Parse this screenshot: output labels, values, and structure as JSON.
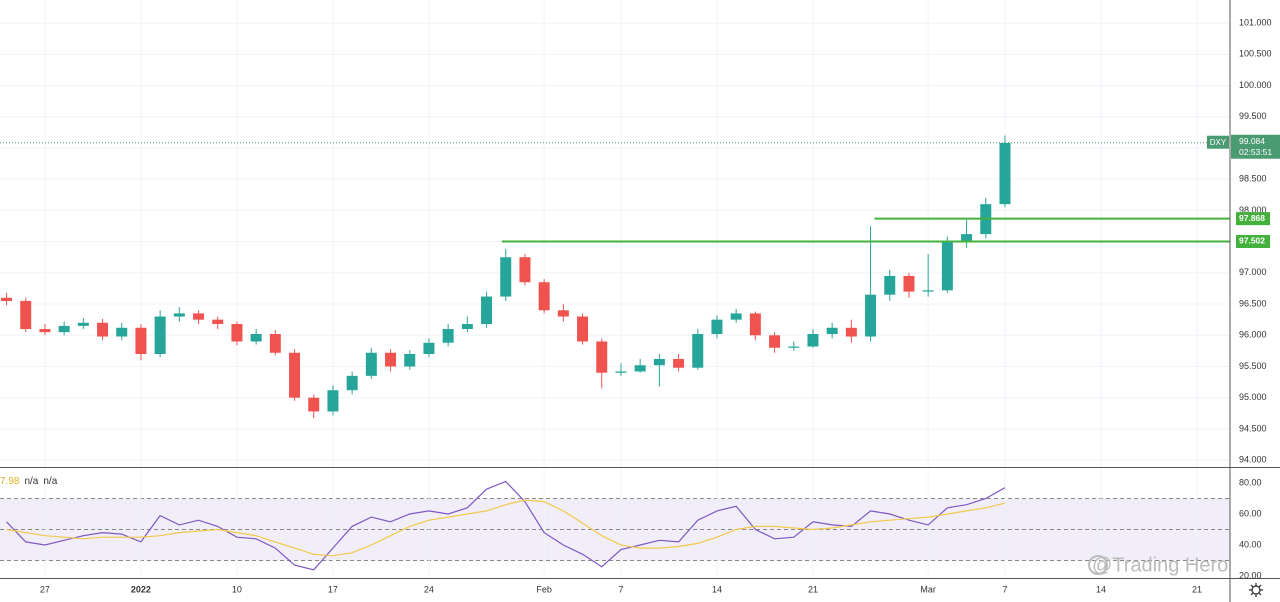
{
  "chart_data": [
    {
      "type": "candlestick",
      "symbol": "DXY",
      "x": [
        -2,
        -1,
        0,
        1,
        2,
        3,
        4,
        5,
        6,
        7,
        8,
        9,
        10,
        11,
        12,
        13,
        14,
        15,
        16,
        17,
        18,
        19,
        20,
        21,
        22,
        23,
        24,
        25,
        26,
        27,
        28,
        29,
        30,
        31,
        32,
        33,
        34,
        35,
        36,
        37,
        38,
        39,
        40,
        41,
        42,
        43,
        44,
        45,
        46,
        47,
        48,
        49,
        50
      ],
      "open": [
        96.6,
        96.55,
        96.1,
        96.05,
        96.15,
        96.2,
        95.98,
        96.12,
        95.7,
        96.3,
        96.35,
        96.25,
        96.18,
        95.9,
        96.02,
        95.72,
        95.0,
        94.78,
        95.12,
        95.35,
        95.72,
        95.5,
        95.7,
        95.88,
        96.1,
        96.18,
        96.62,
        97.25,
        96.85,
        96.4,
        96.3,
        95.9,
        95.4,
        95.42,
        95.52,
        95.62,
        95.48,
        96.02,
        96.25,
        96.35,
        96.0,
        95.8,
        95.82,
        96.02,
        96.12,
        95.98,
        96.65,
        96.95,
        96.7,
        96.72,
        97.5,
        97.62,
        98.1
      ],
      "high": [
        96.68,
        96.6,
        96.18,
        96.22,
        96.28,
        96.26,
        96.2,
        96.18,
        96.4,
        96.45,
        96.4,
        96.3,
        96.22,
        96.1,
        96.08,
        95.78,
        95.05,
        95.2,
        95.42,
        95.8,
        95.78,
        95.76,
        95.95,
        96.18,
        96.3,
        96.7,
        97.38,
        97.3,
        96.9,
        96.5,
        96.35,
        95.95,
        95.55,
        95.62,
        95.7,
        95.7,
        96.1,
        96.32,
        96.42,
        96.38,
        96.05,
        95.9,
        96.1,
        96.2,
        96.25,
        97.75,
        97.05,
        97.0,
        97.3,
        97.58,
        97.85,
        98.2,
        99.2
      ],
      "low": [
        96.48,
        96.05,
        96.0,
        96.0,
        96.1,
        95.92,
        95.92,
        95.6,
        95.65,
        96.22,
        96.18,
        96.1,
        95.84,
        95.85,
        95.68,
        94.95,
        94.67,
        94.72,
        95.05,
        95.3,
        95.42,
        95.45,
        95.65,
        95.82,
        96.05,
        96.12,
        96.55,
        96.8,
        96.35,
        96.22,
        95.85,
        95.15,
        95.35,
        95.4,
        95.18,
        95.42,
        95.45,
        95.95,
        96.2,
        95.92,
        95.72,
        95.75,
        95.8,
        95.95,
        95.88,
        95.9,
        96.55,
        96.6,
        96.62,
        96.68,
        97.4,
        97.55,
        98.05
      ],
      "close": [
        96.55,
        96.1,
        96.05,
        96.15,
        96.2,
        95.98,
        96.12,
        95.7,
        96.3,
        96.35,
        96.25,
        96.18,
        95.9,
        96.02,
        95.72,
        95.0,
        94.78,
        95.12,
        95.35,
        95.72,
        95.5,
        95.7,
        95.88,
        96.1,
        96.18,
        96.62,
        97.25,
        96.85,
        96.4,
        96.3,
        95.9,
        95.4,
        95.42,
        95.52,
        95.62,
        95.48,
        96.02,
        96.25,
        96.35,
        96.0,
        95.8,
        95.82,
        96.02,
        96.12,
        95.98,
        96.65,
        96.95,
        96.7,
        96.72,
        97.5,
        97.62,
        98.1,
        99.08
      ],
      "up_color": "#26a69a",
      "down_color": "#ef5350",
      "xlim": [
        -2.34,
        61.72
      ],
      "ylim": [
        93.89,
        101.37
      ],
      "yticks": [
        {
          "value": 94,
          "label": "94.000"
        },
        {
          "value": 94.5,
          "label": "94.500"
        },
        {
          "value": 95,
          "label": "95.000"
        },
        {
          "value": 95.5,
          "label": "95.500"
        },
        {
          "value": 96,
          "label": "96.000"
        },
        {
          "value": 96.5,
          "label": "96.500"
        },
        {
          "value": 97,
          "label": "97.000"
        },
        {
          "value": 97.5,
          "label": "97.500"
        },
        {
          "value": 98,
          "label": "98.000"
        },
        {
          "value": 98.5,
          "label": "98.500"
        },
        {
          "value": 99,
          "label": "99.000"
        },
        {
          "value": 99.5,
          "label": "99.500"
        },
        {
          "value": 100,
          "label": "100.000"
        },
        {
          "value": 100.5,
          "label": "100.500"
        },
        {
          "value": 101,
          "label": "101.000"
        }
      ],
      "grid": true,
      "last_price": {
        "value": 99.084,
        "label": "99.084"
      },
      "countdown": "02:53:51",
      "levels": [
        {
          "value": 97.868,
          "label": "97.868",
          "from_x": 43.2,
          "color": "#43b13c"
        },
        {
          "value": 97.502,
          "label": "97.502",
          "from_x": 23.8,
          "color": "#43b13c"
        }
      ]
    },
    {
      "type": "line",
      "legend_values": [
        "7.98",
        "n/a",
        "n/a"
      ],
      "x": [
        -2,
        -1,
        0,
        1,
        2,
        3,
        4,
        5,
        6,
        7,
        8,
        9,
        10,
        11,
        12,
        13,
        14,
        15,
        16,
        17,
        18,
        19,
        20,
        21,
        22,
        23,
        24,
        25,
        26,
        27,
        28,
        29,
        30,
        31,
        32,
        33,
        34,
        35,
        36,
        37,
        38,
        39,
        40,
        41,
        42,
        43,
        44,
        45,
        46,
        47,
        48,
        49,
        50
      ],
      "series": [
        {
          "color": "#7e57c2",
          "values": [
            55,
            42,
            40,
            43,
            46,
            48,
            47,
            42,
            59,
            53,
            56,
            52,
            45,
            44,
            38,
            27,
            24,
            38,
            52,
            58,
            55,
            60,
            62,
            60,
            64,
            76,
            81,
            68,
            48,
            40,
            34,
            26,
            37,
            40,
            43,
            42,
            56,
            62,
            65,
            50,
            44,
            45,
            55,
            53,
            52,
            62,
            60,
            56,
            53,
            64,
            66,
            70,
            77
          ]
        },
        {
          "color": "#f2c94c",
          "values": [
            50,
            48,
            46,
            45,
            44,
            45,
            45,
            45,
            46,
            48,
            49,
            50,
            48,
            46,
            42,
            38,
            34,
            33,
            35,
            40,
            46,
            52,
            56,
            58,
            60,
            62,
            66,
            69,
            68,
            62,
            54,
            46,
            40,
            38,
            38,
            39,
            41,
            45,
            50,
            52,
            52,
            51,
            50,
            51,
            53,
            55,
            56,
            57,
            58,
            60,
            62,
            64,
            67
          ]
        }
      ],
      "band": {
        "lower": 30,
        "upper": 70,
        "mid": 50,
        "color": "#7e57c2"
      },
      "xlim": [
        -2.34,
        61.72
      ],
      "ylim": [
        18.7,
        88.4
      ],
      "yticks": [
        {
          "value": 20,
          "label": "20.00"
        },
        {
          "value": 40,
          "label": "40.00"
        },
        {
          "value": 60,
          "label": "60.00"
        },
        {
          "value": 80,
          "label": "80.00"
        }
      ],
      "xticks": [
        {
          "value": 0,
          "label": "27"
        },
        {
          "value": 5,
          "label": "2022"
        },
        {
          "value": 10,
          "label": "10"
        },
        {
          "value": 15,
          "label": "17"
        },
        {
          "value": 20,
          "label": "24"
        },
        {
          "value": 26,
          "label": "Feb"
        },
        {
          "value": 30,
          "label": "7"
        },
        {
          "value": 35,
          "label": "14"
        },
        {
          "value": 40,
          "label": "21"
        },
        {
          "value": 46,
          "label": "Mar"
        },
        {
          "value": 50,
          "label": "7"
        },
        {
          "value": 55,
          "label": "14"
        },
        {
          "value": 60,
          "label": "21"
        }
      ]
    }
  ],
  "watermark": "@Trading Hero"
}
